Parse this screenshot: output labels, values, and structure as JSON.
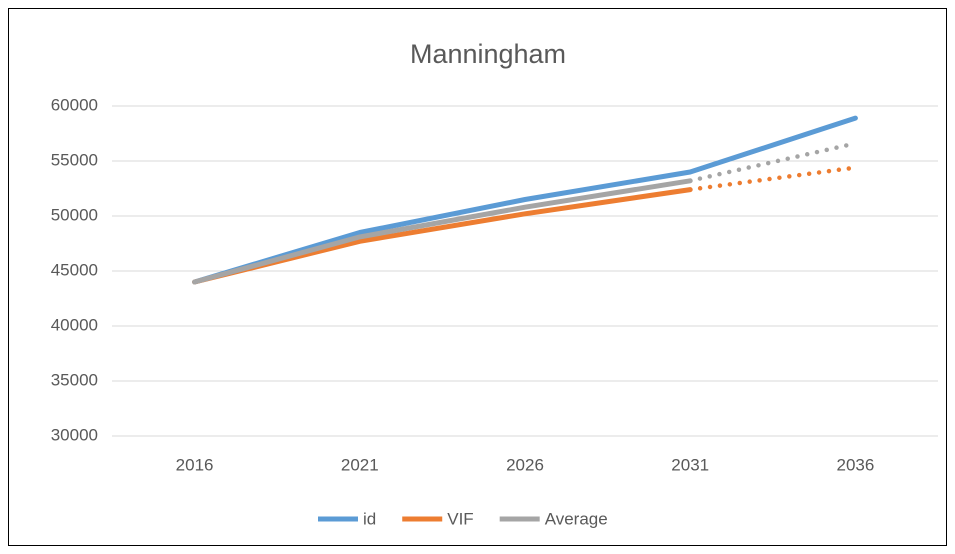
{
  "chart_data": {
    "type": "line",
    "title": "Manningham",
    "categories": [
      "2016",
      "2021",
      "2026",
      "2031",
      "2036"
    ],
    "series": [
      {
        "name": "id",
        "color": "#5b9bd5",
        "values": [
          44000,
          48500,
          51500,
          54000,
          58900
        ]
      },
      {
        "name": "VIF",
        "color": "#ed7d31",
        "values": [
          44000,
          47700,
          50200,
          52400,
          54400
        ],
        "dotted_after": 3
      },
      {
        "name": "Average",
        "color": "#a5a5a5",
        "values": [
          44000,
          48100,
          50800,
          53200,
          56600
        ],
        "dotted_after": 3
      }
    ],
    "ylim": [
      30000,
      60000
    ],
    "yticks": [
      30000,
      35000,
      40000,
      45000,
      50000,
      55000,
      60000
    ],
    "grid": true,
    "legend": "bottom"
  }
}
